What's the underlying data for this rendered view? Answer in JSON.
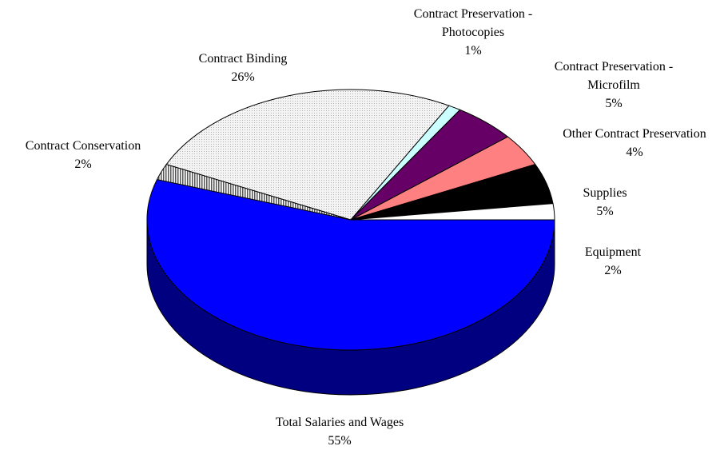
{
  "chart_data": {
    "type": "pie",
    "title": "",
    "slices": [
      {
        "label": "Total Salaries and Wages",
        "lines": [
          "Total Salaries and Wages"
        ],
        "pct_text": "55%",
        "value": 55,
        "color": "#0000ff"
      },
      {
        "label": "Contract Conservation",
        "lines": [
          "Contract Conservation"
        ],
        "pct_text": "2%",
        "value": 2,
        "color": "#a6a6a6"
      },
      {
        "label": "Contract Binding",
        "lines": [
          "Contract Binding"
        ],
        "pct_text": "26%",
        "value": 26,
        "color": "#f0f0f0"
      },
      {
        "label": "Contract Preservation - Photocopies",
        "lines": [
          "Contract Preservation -",
          "Photocopies"
        ],
        "pct_text": "1%",
        "value": 1,
        "color": "#ccffff"
      },
      {
        "label": "Contract Preservation - Microfilm",
        "lines": [
          "Contract Preservation -",
          "Microfilm"
        ],
        "pct_text": "5%",
        "value": 5,
        "color": "#660066"
      },
      {
        "label": "Other Contract Preservation",
        "lines": [
          "Other Contract Preservation"
        ],
        "pct_text": "4%",
        "value": 4,
        "color": "#ff8080"
      },
      {
        "label": "Supplies",
        "lines": [
          "Supplies"
        ],
        "pct_text": "5%",
        "value": 5,
        "color": "#000000"
      },
      {
        "label": "Equipment",
        "lines": [
          "Equipment"
        ],
        "pct_text": "2%",
        "value": 2,
        "color": "#ffffff"
      }
    ]
  }
}
